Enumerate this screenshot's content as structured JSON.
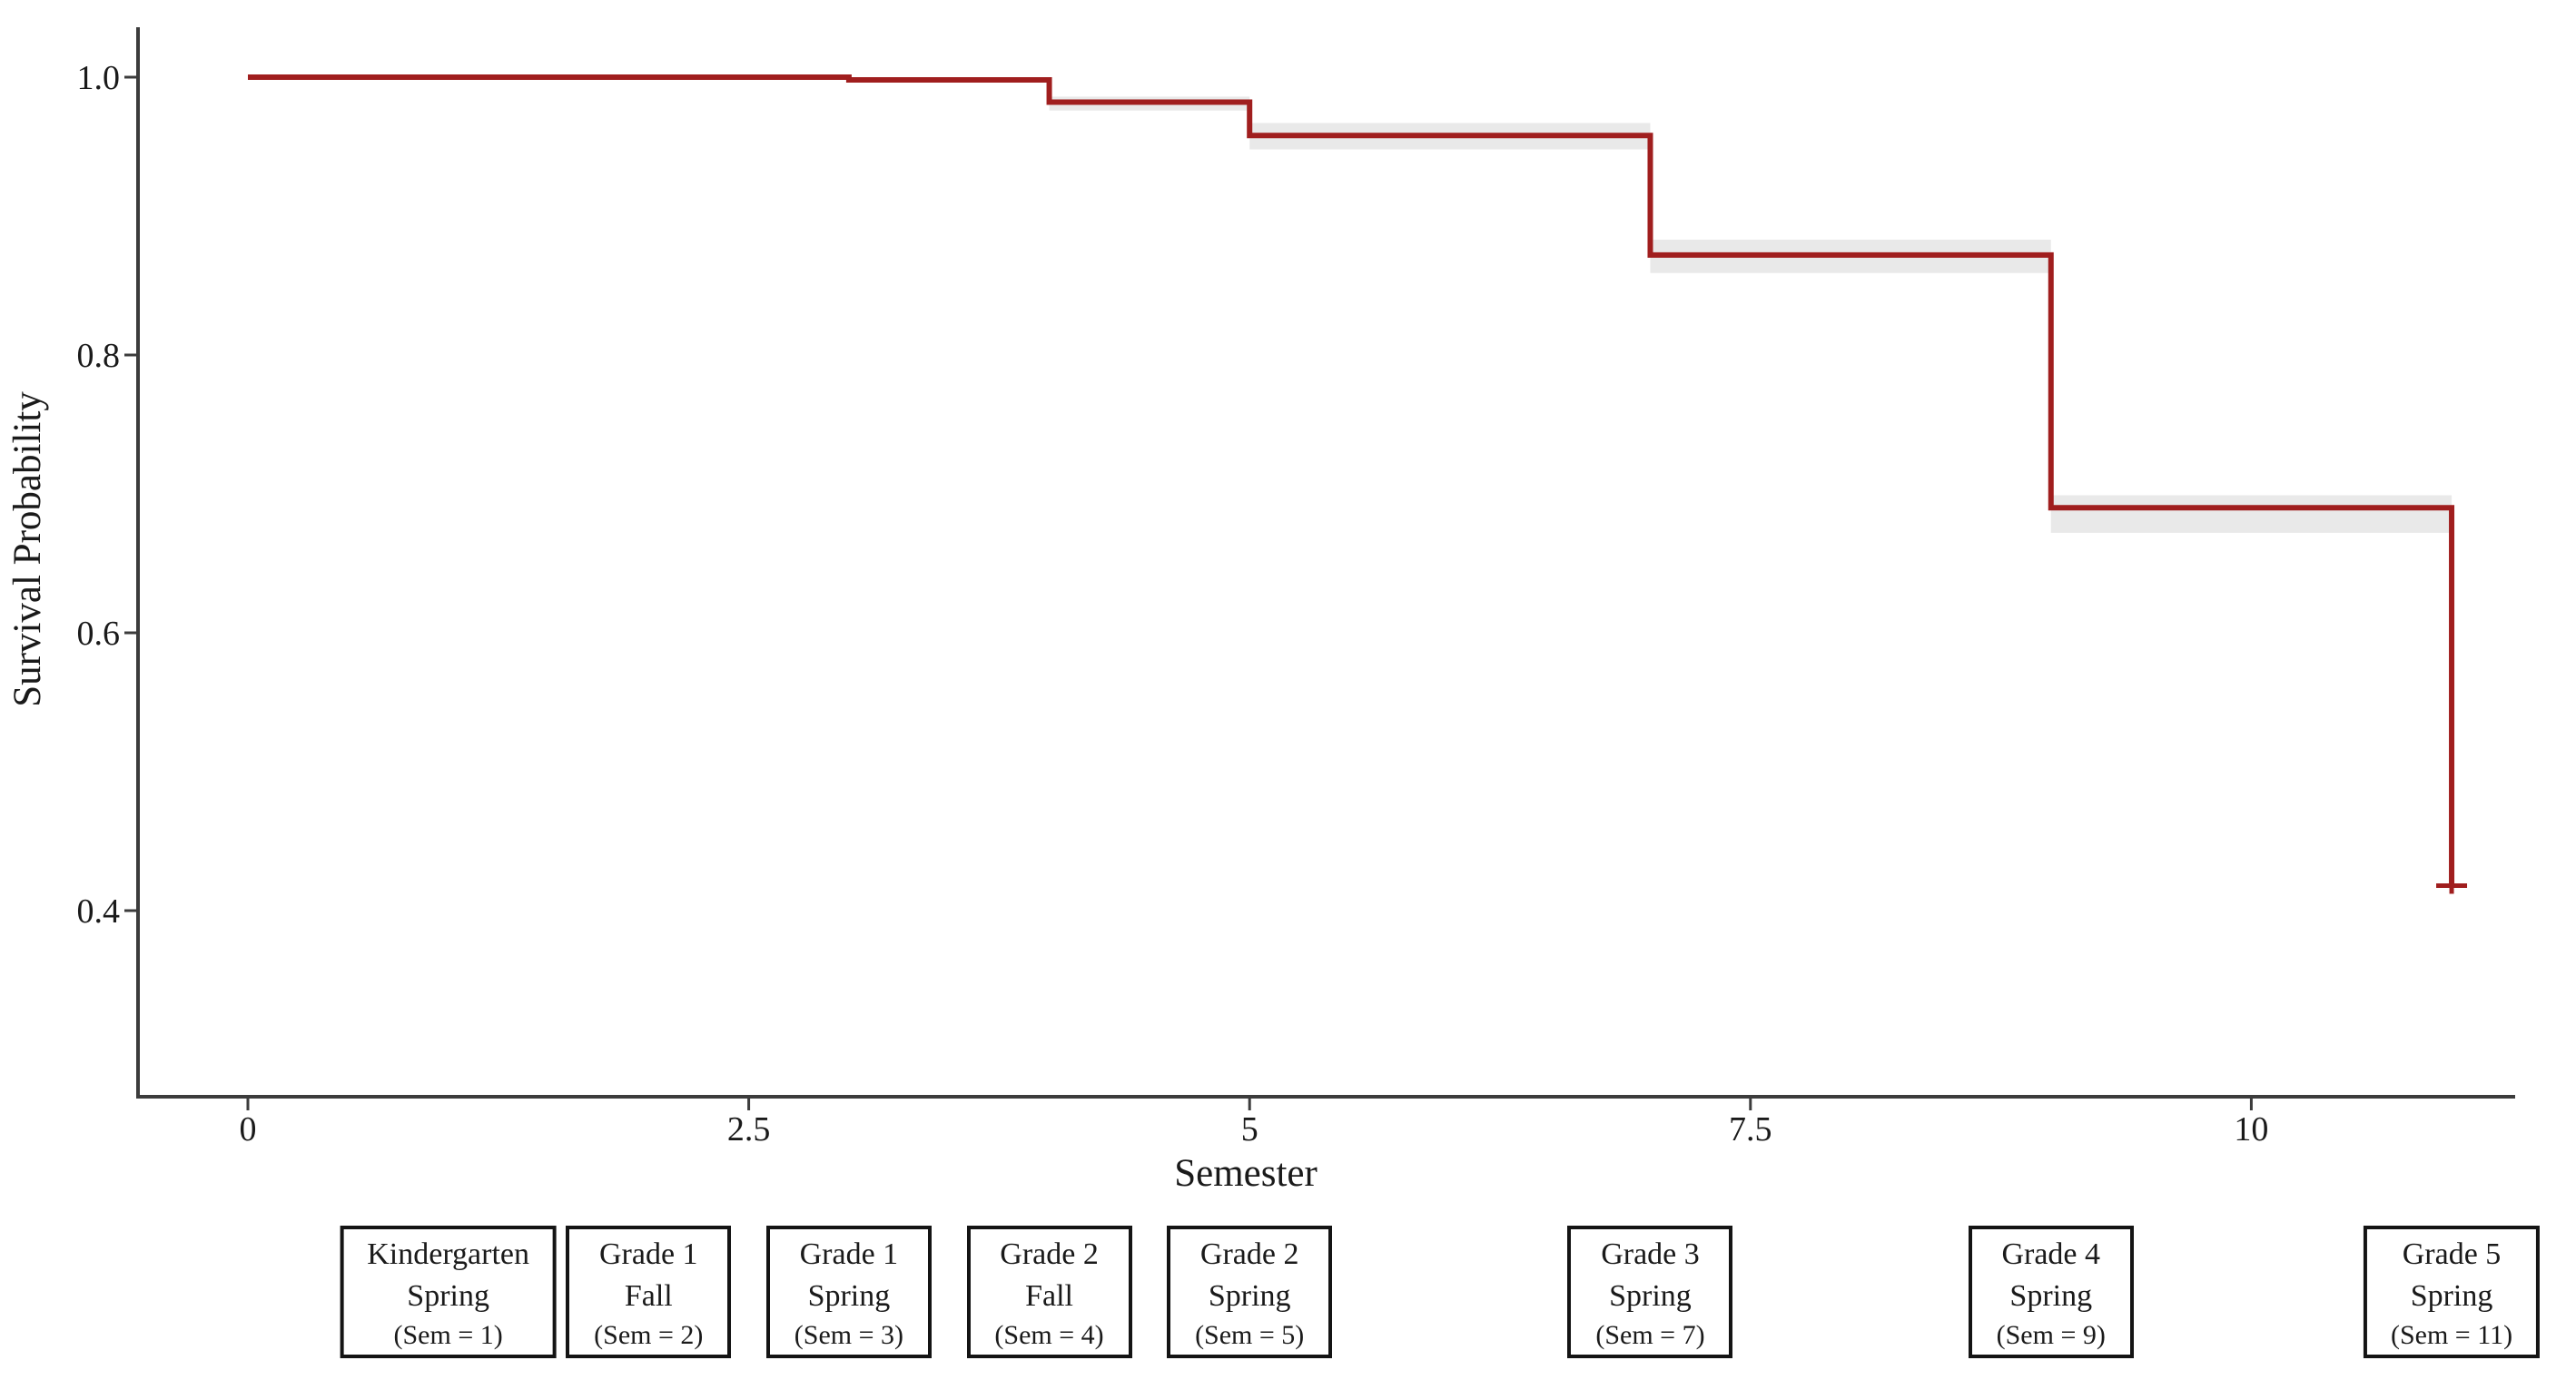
{
  "chart_data": {
    "type": "line",
    "subtype": "kaplan-meier-step",
    "title": "",
    "xlabel": "Semester",
    "ylabel": "Survival Probability",
    "grid": false,
    "legend_position": "none",
    "xlim": [
      -0.56,
      11.3
    ],
    "ylim": [
      0.266,
      1.036
    ],
    "x_ticks": [
      {
        "value": 0,
        "label": "0"
      },
      {
        "value": 2.5,
        "label": "2.5"
      },
      {
        "value": 5,
        "label": "5"
      },
      {
        "value": 7.5,
        "label": "7.5"
      },
      {
        "value": 10,
        "label": "10"
      }
    ],
    "y_ticks": [
      {
        "value": 1.0,
        "label": "1.0"
      },
      {
        "value": 0.8,
        "label": "0.8"
      },
      {
        "value": 0.6,
        "label": "0.6"
      },
      {
        "value": 0.4,
        "label": "0.4"
      }
    ],
    "series": [
      {
        "name": "Survival Probability",
        "color": "#A01E1E",
        "line_width": 6,
        "steps": [
          {
            "t": 0,
            "survival": 1.0
          },
          {
            "t": 3,
            "survival": 0.998
          },
          {
            "t": 4,
            "survival": 0.982
          },
          {
            "t": 5,
            "survival": 0.958
          },
          {
            "t": 7,
            "survival": 0.872
          },
          {
            "t": 9,
            "survival": 0.69
          },
          {
            "t": 11,
            "survival": 0.418
          }
        ],
        "censor_marks": [
          {
            "t": 11,
            "survival": 0.418
          }
        ]
      }
    ],
    "confidence_band": {
      "color": "#E9E9E9",
      "intervals": [
        {
          "t_start": 4,
          "t_end": 5,
          "lower": 0.976,
          "upper": 0.986
        },
        {
          "t_start": 5,
          "t_end": 7,
          "lower": 0.948,
          "upper": 0.967
        },
        {
          "t_start": 7,
          "t_end": 9,
          "lower": 0.859,
          "upper": 0.883
        },
        {
          "t_start": 9,
          "t_end": 11,
          "lower": 0.672,
          "upper": 0.699
        }
      ]
    }
  },
  "timeline_boxes": [
    {
      "sem": 1,
      "grade": "Kindergarten",
      "term": "Spring",
      "sem_label": "(Sem = 1)"
    },
    {
      "sem": 2,
      "grade": "Grade 1",
      "term": "Fall",
      "sem_label": "(Sem = 2)"
    },
    {
      "sem": 3,
      "grade": "Grade 1",
      "term": "Spring",
      "sem_label": "(Sem = 3)"
    },
    {
      "sem": 4,
      "grade": "Grade 2",
      "term": "Fall",
      "sem_label": "(Sem = 4)"
    },
    {
      "sem": 5,
      "grade": "Grade 2",
      "term": "Spring",
      "sem_label": "(Sem = 5)"
    },
    {
      "sem": 7,
      "grade": "Grade 3",
      "term": "Spring",
      "sem_label": "(Sem = 7)"
    },
    {
      "sem": 9,
      "grade": "Grade 4",
      "term": "Spring",
      "sem_label": "(Sem = 9)"
    },
    {
      "sem": 11,
      "grade": "Grade 5",
      "term": "Spring",
      "sem_label": "(Sem = 11)"
    }
  ],
  "colors": {
    "curve": "#A01E1E",
    "ci_band": "#E9E9E9",
    "axis_line": "#3C3C3C",
    "text": "#1A1A1A",
    "background": "#FFFFFF"
  }
}
